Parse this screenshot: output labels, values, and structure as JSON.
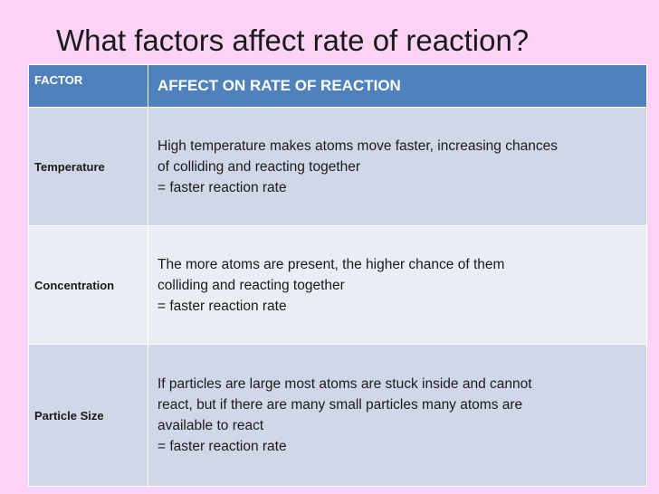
{
  "slide": {
    "title": "What factors affect rate of reaction?"
  },
  "table": {
    "headers": {
      "factor": "FACTOR",
      "effect": "AFFECT ON RATE OF REACTION"
    },
    "rows": [
      {
        "factor": "Temperature",
        "effect_lines": [
          "High temperature makes atoms move faster, increasing chances",
          "of colliding and reacting together",
          "= faster reaction rate"
        ]
      },
      {
        "factor": "Concentration",
        "effect_lines": [
          "The more atoms are present, the higher chance of them",
          "colliding and reacting together",
          "= faster reaction rate"
        ]
      },
      {
        "factor": "Particle Size",
        "effect_lines": [
          "If particles are large most atoms are stuck inside and cannot",
          "react, but if there are  many small particles many atoms are",
          "available to react",
          "= faster reaction rate"
        ]
      }
    ]
  },
  "colors": {
    "background": "#fcd2f7",
    "header": "#4f81bd",
    "row_dark": "#d0d8e8",
    "row_light": "#e9edf4"
  }
}
